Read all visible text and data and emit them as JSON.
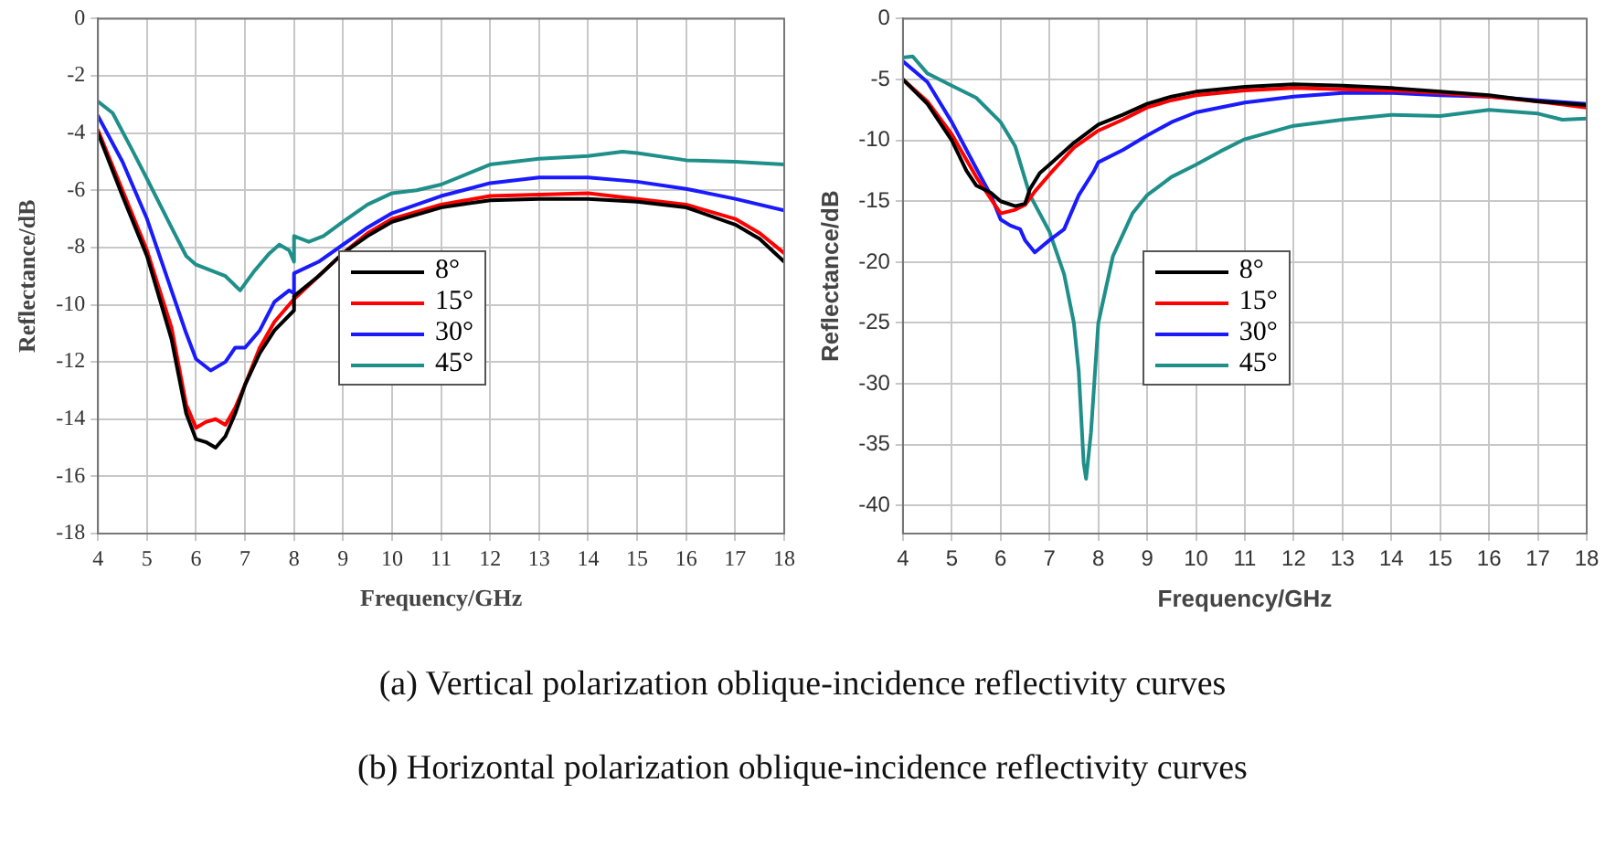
{
  "chart_data": [
    {
      "type": "line",
      "xlabel": "Frequency/GHz",
      "ylabel": "Reflectance/dB",
      "xlim": [
        4,
        18
      ],
      "ylim": [
        -18,
        0
      ],
      "xticks": [
        4,
        5,
        6,
        7,
        8,
        9,
        10,
        11,
        12,
        13,
        14,
        15,
        16,
        17,
        18
      ],
      "yticks": [
        -18,
        -16,
        -14,
        -12,
        -10,
        -8,
        -6,
        -4,
        -2,
        0
      ],
      "grid": true,
      "legend": "center",
      "line_style": "solid",
      "annotations": [
        "(a) Vertical polarization oblique-incidence reflectivity curves"
      ],
      "series": [
        {
          "name": "8°",
          "color": "#000000",
          "x": [
            4,
            4.5,
            5,
            5.5,
            5.8,
            6,
            6.2,
            6.4,
            6.6,
            6.8,
            7,
            7.3,
            7.6,
            8,
            8,
            8.5,
            9,
            9.5,
            10,
            11,
            12,
            13,
            14,
            15,
            16,
            17,
            17.5,
            18
          ],
          "values": [
            -4.0,
            -6.2,
            -8.3,
            -11.2,
            -13.8,
            -14.7,
            -14.8,
            -15.0,
            -14.6,
            -13.8,
            -12.8,
            -11.7,
            -10.9,
            -10.2,
            -9.7,
            -9.0,
            -8.2,
            -7.6,
            -7.1,
            -6.6,
            -6.35,
            -6.3,
            -6.3,
            -6.4,
            -6.6,
            -7.2,
            -7.7,
            -8.5
          ]
        },
        {
          "name": "15°",
          "color": "#ff0000",
          "x": [
            4,
            4.5,
            5,
            5.5,
            5.8,
            6,
            6.2,
            6.4,
            6.6,
            6.8,
            7,
            7.3,
            7.6,
            8,
            8.5,
            9,
            9.5,
            10,
            11,
            12,
            13,
            14,
            15,
            16,
            17,
            17.5,
            18
          ],
          "values": [
            -3.9,
            -6.0,
            -8.1,
            -10.8,
            -13.5,
            -14.3,
            -14.1,
            -14.0,
            -14.2,
            -13.6,
            -12.8,
            -11.5,
            -10.6,
            -9.8,
            -9.0,
            -8.2,
            -7.5,
            -7.0,
            -6.5,
            -6.2,
            -6.15,
            -6.1,
            -6.3,
            -6.5,
            -7.0,
            -7.5,
            -8.2
          ]
        },
        {
          "name": "30°",
          "color": "#1a1aff",
          "x": [
            4,
            4.5,
            5,
            5.5,
            5.8,
            6,
            6.3,
            6.6,
            6.8,
            7,
            7.3,
            7.6,
            7.9,
            8,
            8,
            8.5,
            9,
            9.5,
            10,
            11,
            12,
            13,
            14,
            15,
            16,
            17,
            18
          ],
          "values": [
            -3.4,
            -5.0,
            -7.0,
            -9.5,
            -11.0,
            -11.9,
            -12.3,
            -12.0,
            -11.5,
            -11.5,
            -10.9,
            -9.9,
            -9.5,
            -9.6,
            -8.9,
            -8.5,
            -7.9,
            -7.3,
            -6.8,
            -6.2,
            -5.75,
            -5.55,
            -5.55,
            -5.7,
            -5.95,
            -6.3,
            -6.7
          ]
        },
        {
          "name": "45°",
          "color": "#1f8f8a",
          "x": [
            4,
            4.3,
            4.7,
            5,
            5.5,
            5.8,
            6,
            6.3,
            6.6,
            6.9,
            7.2,
            7.5,
            7.7,
            7.9,
            8,
            8,
            8.3,
            8.6,
            9,
            9.5,
            10,
            10.5,
            11,
            12,
            13,
            14,
            14.7,
            15,
            16,
            17,
            18
          ],
          "values": [
            -2.9,
            -3.3,
            -4.6,
            -5.6,
            -7.3,
            -8.3,
            -8.6,
            -8.8,
            -9.0,
            -9.5,
            -8.8,
            -8.2,
            -7.9,
            -8.1,
            -8.5,
            -7.6,
            -7.8,
            -7.6,
            -7.1,
            -6.5,
            -6.1,
            -6.0,
            -5.8,
            -5.1,
            -4.9,
            -4.8,
            -4.65,
            -4.7,
            -4.95,
            -5.0,
            -5.1
          ]
        }
      ]
    },
    {
      "type": "line",
      "xlabel": "Frequency/GHz",
      "ylabel": "Reflectance/dB",
      "xlim": [
        4,
        18
      ],
      "ylim": [
        -42.3,
        0
      ],
      "xticks": [
        4,
        5,
        6,
        7,
        8,
        9,
        10,
        11,
        12,
        13,
        14,
        15,
        16,
        17,
        18
      ],
      "yticks": [
        -40,
        -35,
        -30,
        -25,
        -20,
        -15,
        -10,
        -5,
        0
      ],
      "grid": true,
      "legend": "center",
      "line_style": "solid",
      "annotations": [
        "(b) Horizontal polarization oblique-incidence reflectivity curves"
      ],
      "series": [
        {
          "name": "8°",
          "color": "#000000",
          "x": [
            4,
            4.5,
            5,
            5.3,
            5.5,
            5.8,
            6,
            6.3,
            6.5,
            6.6,
            6.8,
            7,
            7.5,
            8,
            8.5,
            9,
            9.5,
            10,
            11,
            12,
            13,
            14,
            15,
            16,
            17,
            18
          ],
          "values": [
            -5.0,
            -7.0,
            -10.0,
            -12.5,
            -13.7,
            -14.3,
            -15.0,
            -15.4,
            -15.2,
            -14.0,
            -12.7,
            -12.0,
            -10.2,
            -8.7,
            -7.9,
            -7.0,
            -6.4,
            -6.0,
            -5.6,
            -5.4,
            -5.5,
            -5.7,
            -6.0,
            -6.3,
            -6.8,
            -7.1
          ]
        },
        {
          "name": "15°",
          "color": "#ff0000",
          "x": [
            4,
            4.5,
            5,
            5.5,
            6,
            6.3,
            6.5,
            6.7,
            7,
            7.5,
            8,
            8.5,
            9,
            9.5,
            10,
            11,
            12,
            13,
            14,
            15,
            16,
            17,
            18
          ],
          "values": [
            -5.0,
            -6.8,
            -9.5,
            -13.0,
            -16.0,
            -15.7,
            -15.3,
            -14.2,
            -12.8,
            -10.6,
            -9.2,
            -8.3,
            -7.3,
            -6.7,
            -6.3,
            -5.9,
            -5.7,
            -5.8,
            -5.9,
            -6.1,
            -6.4,
            -6.8,
            -7.3
          ]
        },
        {
          "name": "30°",
          "color": "#1a1aff",
          "x": [
            4,
            4.5,
            5,
            5.5,
            5.8,
            6,
            6.2,
            6.4,
            6.5,
            6.7,
            7,
            7.3,
            7.6,
            7.9,
            8,
            8.5,
            9,
            9.5,
            10,
            11,
            12,
            13,
            14,
            15,
            16,
            17,
            18
          ],
          "values": [
            -3.5,
            -5.2,
            -8.5,
            -12.3,
            -14.5,
            -16.5,
            -17.0,
            -17.3,
            -18.2,
            -19.2,
            -18.2,
            -17.3,
            -14.5,
            -12.6,
            -11.8,
            -10.8,
            -9.6,
            -8.5,
            -7.7,
            -6.9,
            -6.4,
            -6.1,
            -6.1,
            -6.3,
            -6.4,
            -6.7,
            -7.0
          ]
        },
        {
          "name": "45°",
          "color": "#1f8f8a",
          "x": [
            4,
            4.2,
            4.5,
            5,
            5.5,
            6,
            6.3,
            6.6,
            7,
            7.3,
            7.5,
            7.6,
            7.7,
            7.75,
            7.85,
            7.95,
            8,
            8.3,
            8.7,
            9,
            9.5,
            10,
            10.5,
            11,
            12,
            13,
            14,
            15,
            16,
            17,
            17.5,
            18
          ],
          "values": [
            -3.2,
            -3.1,
            -4.5,
            -5.5,
            -6.5,
            -8.5,
            -10.5,
            -14.5,
            -17.5,
            -21,
            -25,
            -29,
            -36.5,
            -37.8,
            -34,
            -28,
            -25,
            -19.5,
            -16.0,
            -14.5,
            -13.0,
            -12.0,
            -10.9,
            -9.9,
            -8.8,
            -8.3,
            -7.9,
            -8.0,
            -7.5,
            -7.8,
            -8.3,
            -8.2
          ]
        }
      ]
    }
  ]
}
